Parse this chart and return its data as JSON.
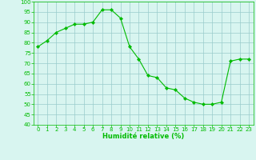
{
  "x": [
    0,
    1,
    2,
    3,
    4,
    5,
    6,
    7,
    8,
    9,
    10,
    11,
    12,
    13,
    14,
    15,
    16,
    17,
    18,
    19,
    20,
    21,
    22,
    23
  ],
  "y": [
    78,
    81,
    85,
    87,
    89,
    89,
    90,
    96,
    96,
    92,
    78,
    72,
    64,
    63,
    58,
    57,
    53,
    51,
    50,
    50,
    51,
    71,
    72,
    72
  ],
  "line_color": "#00bb00",
  "marker_color": "#00bb00",
  "bg_color": "#d8f5f0",
  "grid_color": "#99cccc",
  "xlabel": "Humidité relative (%)",
  "xlabel_color": "#00bb00",
  "tick_color": "#00bb00",
  "spine_color": "#00bb00",
  "ylim": [
    40,
    100
  ],
  "xlim": [
    -0.5,
    23.5
  ],
  "yticks": [
    40,
    45,
    50,
    55,
    60,
    65,
    70,
    75,
    80,
    85,
    90,
    95,
    100
  ],
  "xticks": [
    0,
    1,
    2,
    3,
    4,
    5,
    6,
    7,
    8,
    9,
    10,
    11,
    12,
    13,
    14,
    15,
    16,
    17,
    18,
    19,
    20,
    21,
    22,
    23
  ],
  "tick_fontsize": 5.0,
  "xlabel_fontsize": 6.0
}
